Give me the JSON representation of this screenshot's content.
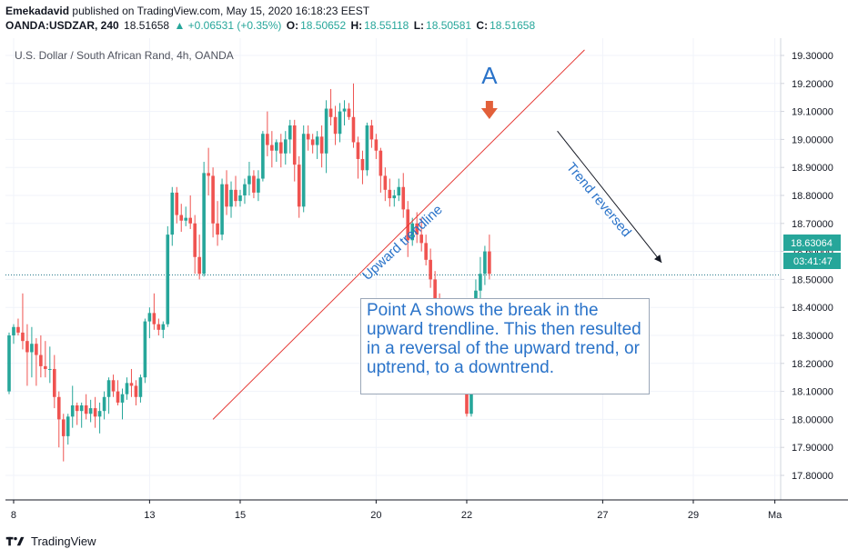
{
  "header": {
    "publisher": "Emekadavid",
    "published_text": "published on TradingView.com, May 15, 2020 16:18:23 EEST",
    "symbol": "OANDA:USDZAR, 240",
    "last": "18.51658",
    "change": "▲ +0.06531 (+0.35%)",
    "o_label": "O:",
    "o_value": "18.50652",
    "h_label": "H:",
    "h_value": "18.55118",
    "l_label": "L:",
    "l_value": "18.50581",
    "c_label": "C:",
    "c_value": "18.51658"
  },
  "chart_title": "U.S. Dollar / South African Rand, 4h, OANDA",
  "colors": {
    "up": "#26a69a",
    "down": "#ef5350",
    "trendline": "#e53935",
    "annotation": "#2a73c9",
    "arrow": "#e2603a"
  },
  "annotations": {
    "point_label": "A",
    "trendline_label": "Upward trendline",
    "reversal_label": "Trend reversed",
    "callout": "Point A shows the break in the upward trendline. This then resulted in a reversal of the upward trend, or uptrend, to a downtrend."
  },
  "price_tags": {
    "last_price": "18.63064",
    "countdown": "03:41:47"
  },
  "footer": {
    "brand": "TradingView"
  },
  "chart_data": {
    "type": "candlestick",
    "title": "U.S. Dollar / South African Rand, 4h, OANDA",
    "ylim": [
      17.72,
      19.36
    ],
    "y_ticks": [
      17.8,
      17.9,
      18.0,
      18.1,
      18.2,
      18.3,
      18.4,
      18.5,
      18.6,
      18.7,
      18.8,
      18.9,
      19.0,
      19.1,
      19.2,
      19.3
    ],
    "y_tick_labels": [
      "17.80000",
      "17.90000",
      "18.00000",
      "18.10000",
      "18.20000",
      "18.30000",
      "18.40000",
      "18.50000",
      "18.60000",
      "18.70000",
      "18.80000",
      "18.90000",
      "19.00000",
      "19.10000",
      "19.20000",
      "19.30000"
    ],
    "x_tick_labels": [
      {
        "label": "8",
        "index": 1
      },
      {
        "label": "13",
        "index": 31
      },
      {
        "label": "15",
        "index": 51
      },
      {
        "label": "20",
        "index": 81
      },
      {
        "label": "22",
        "index": 101
      },
      {
        "label": "27",
        "index": 131
      },
      {
        "label": "29",
        "index": 151
      },
      {
        "label": "Ma",
        "index": 169
      }
    ],
    "reference_price": 18.516,
    "trendline": {
      "from": {
        "index": 45,
        "price": 18.0
      },
      "to": {
        "index": 127,
        "price": 19.32
      }
    },
    "reversal_arrow": {
      "from": {
        "index": 121,
        "price": 19.03
      },
      "to": {
        "index": 144,
        "price": 18.56
      }
    },
    "point_a_index": 106,
    "candles": [
      [
        18.1,
        18.31,
        18.09,
        18.3
      ],
      [
        18.3,
        18.34,
        18.27,
        18.33
      ],
      [
        18.33,
        18.36,
        18.3,
        18.31
      ],
      [
        18.31,
        18.45,
        18.25,
        18.28
      ],
      [
        18.28,
        18.34,
        18.12,
        18.24
      ],
      [
        18.24,
        18.33,
        18.15,
        18.27
      ],
      [
        18.27,
        18.29,
        18.12,
        18.23
      ],
      [
        18.23,
        18.3,
        18.15,
        18.19
      ],
      [
        18.19,
        18.28,
        18.15,
        18.18
      ],
      [
        18.18,
        18.26,
        18.13,
        18.18
      ],
      [
        18.18,
        18.23,
        18.04,
        18.08
      ],
      [
        18.08,
        18.1,
        17.9,
        18.0
      ],
      [
        18.0,
        18.02,
        17.85,
        17.94
      ],
      [
        17.94,
        18.02,
        17.91,
        18.01
      ],
      [
        18.01,
        18.12,
        17.97,
        18.05
      ],
      [
        18.05,
        18.06,
        17.98,
        18.03
      ],
      [
        18.03,
        18.06,
        17.97,
        18.05
      ],
      [
        18.05,
        18.09,
        18.0,
        18.02
      ],
      [
        18.02,
        18.07,
        17.99,
        18.04
      ],
      [
        18.04,
        18.08,
        17.97,
        18.01
      ],
      [
        18.01,
        18.06,
        17.95,
        18.03
      ],
      [
        18.03,
        18.1,
        18.0,
        18.08
      ],
      [
        18.08,
        18.15,
        18.02,
        18.14
      ],
      [
        18.14,
        18.16,
        18.08,
        18.1
      ],
      [
        18.1,
        18.14,
        18.05,
        18.06
      ],
      [
        18.06,
        18.11,
        18.0,
        18.09
      ],
      [
        18.09,
        18.15,
        18.07,
        18.13
      ],
      [
        18.13,
        18.18,
        18.08,
        18.12
      ],
      [
        18.12,
        18.14,
        18.05,
        18.08
      ],
      [
        18.08,
        18.16,
        18.06,
        18.15
      ],
      [
        18.15,
        18.36,
        18.13,
        18.35
      ],
      [
        18.35,
        18.4,
        18.29,
        18.38
      ],
      [
        18.38,
        18.45,
        18.32,
        18.34
      ],
      [
        18.34,
        18.36,
        18.3,
        18.32
      ],
      [
        18.32,
        18.35,
        18.29,
        18.34
      ],
      [
        18.34,
        18.69,
        18.33,
        18.66
      ],
      [
        18.66,
        18.83,
        18.62,
        18.81
      ],
      [
        18.81,
        18.83,
        18.7,
        18.73
      ],
      [
        18.73,
        18.77,
        18.67,
        18.71
      ],
      [
        18.71,
        18.76,
        18.69,
        18.72
      ],
      [
        18.72,
        18.8,
        18.68,
        18.7
      ],
      [
        18.7,
        18.73,
        18.52,
        18.58
      ],
      [
        18.58,
        18.66,
        18.5,
        18.52
      ],
      [
        18.52,
        18.92,
        18.51,
        18.88
      ],
      [
        18.88,
        18.97,
        18.8,
        18.87
      ],
      [
        18.87,
        18.9,
        18.65,
        18.7
      ],
      [
        18.7,
        18.78,
        18.62,
        18.66
      ],
      [
        18.66,
        18.86,
        18.64,
        18.84
      ],
      [
        18.84,
        18.89,
        18.73,
        18.76
      ],
      [
        18.76,
        18.85,
        18.72,
        18.82
      ],
      [
        18.82,
        18.87,
        18.76,
        18.78
      ],
      [
        18.78,
        18.82,
        18.76,
        18.8
      ],
      [
        18.8,
        18.86,
        18.77,
        18.84
      ],
      [
        18.84,
        18.92,
        18.8,
        18.87
      ],
      [
        18.87,
        18.89,
        18.79,
        18.81
      ],
      [
        18.81,
        18.89,
        18.78,
        18.86
      ],
      [
        18.86,
        19.03,
        18.85,
        19.02
      ],
      [
        19.02,
        19.1,
        18.94,
        18.98
      ],
      [
        18.98,
        19.03,
        18.9,
        18.96
      ],
      [
        18.96,
        19.0,
        18.92,
        18.99
      ],
      [
        18.99,
        19.02,
        18.9,
        18.95
      ],
      [
        18.95,
        19.03,
        18.91,
        19.0
      ],
      [
        19.0,
        19.07,
        18.95,
        19.05
      ],
      [
        19.05,
        19.07,
        18.85,
        18.91
      ],
      [
        18.91,
        18.94,
        18.72,
        18.76
      ],
      [
        18.76,
        19.05,
        18.74,
        19.02
      ],
      [
        19.02,
        19.05,
        18.96,
        19.0
      ],
      [
        19.0,
        19.02,
        18.95,
        18.98
      ],
      [
        18.98,
        19.03,
        18.93,
        19.01
      ],
      [
        19.01,
        19.05,
        18.9,
        18.95
      ],
      [
        18.95,
        19.14,
        18.88,
        19.11
      ],
      [
        19.11,
        19.18,
        19.05,
        19.08
      ],
      [
        19.08,
        19.12,
        18.98,
        19.02
      ],
      [
        19.02,
        19.13,
        18.99,
        19.1
      ],
      [
        19.1,
        19.14,
        19.05,
        19.11
      ],
      [
        19.11,
        19.13,
        19.07,
        19.08
      ],
      [
        19.08,
        19.2,
        18.97,
        18.99
      ],
      [
        18.99,
        19.01,
        18.86,
        18.93
      ],
      [
        18.93,
        18.96,
        18.84,
        18.89
      ],
      [
        18.89,
        19.06,
        18.87,
        19.05
      ],
      [
        19.05,
        19.07,
        18.97,
        19.0
      ],
      [
        19.0,
        19.02,
        18.93,
        18.96
      ],
      [
        18.96,
        18.97,
        18.81,
        18.87
      ],
      [
        18.87,
        18.9,
        18.78,
        18.82
      ],
      [
        18.82,
        18.86,
        18.76,
        18.79
      ],
      [
        18.79,
        18.82,
        18.76,
        18.8
      ],
      [
        18.8,
        18.86,
        18.78,
        18.83
      ],
      [
        18.83,
        18.88,
        18.72,
        18.75
      ],
      [
        18.75,
        18.78,
        18.58,
        18.64
      ],
      [
        18.64,
        18.72,
        18.62,
        18.7
      ],
      [
        18.7,
        18.74,
        18.63,
        18.66
      ],
      [
        18.66,
        18.72,
        18.6,
        18.63
      ],
      [
        18.63,
        18.66,
        18.55,
        18.57
      ],
      [
        18.57,
        18.61,
        18.47,
        18.5
      ],
      [
        18.5,
        18.53,
        18.38,
        18.42
      ],
      [
        18.42,
        18.45,
        18.28,
        18.32
      ],
      [
        18.32,
        18.35,
        18.22,
        18.26
      ],
      [
        18.26,
        18.28,
        18.15,
        18.19
      ],
      [
        18.19,
        18.22,
        18.1,
        18.13
      ],
      [
        18.13,
        18.25,
        18.11,
        18.22
      ],
      [
        18.22,
        18.24,
        18.1,
        18.17
      ],
      [
        18.17,
        18.19,
        18.01,
        18.02
      ],
      [
        18.02,
        18.21,
        18.01,
        18.19
      ],
      [
        18.19,
        18.5,
        18.17,
        18.46
      ],
      [
        18.46,
        18.58,
        18.42,
        18.52
      ],
      [
        18.52,
        18.62,
        18.48,
        18.6
      ],
      [
        18.6,
        18.66,
        18.5,
        18.52
      ]
    ]
  }
}
